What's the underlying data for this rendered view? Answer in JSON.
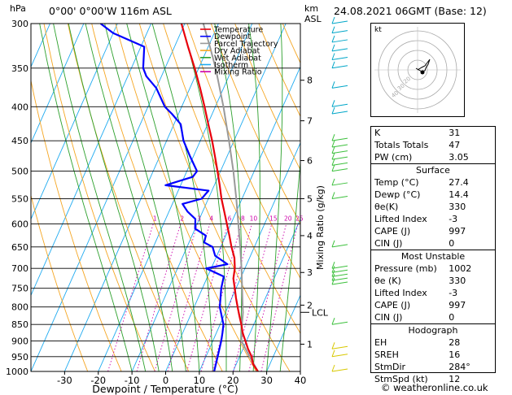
{
  "header": {
    "hpa_label": "hPa",
    "location": "0°00' 0°00'W  116m  ASL",
    "km_label": "km",
    "asl_label": "ASL",
    "date": "24.08.2021  06GMT  (Base: 12)"
  },
  "legend": [
    {
      "name": "Temperature",
      "color": "#e8000b"
    },
    {
      "name": "Dewpoint",
      "color": "#0000ff"
    },
    {
      "name": "Parcel Trajectory",
      "color": "#9a9a9a"
    },
    {
      "name": "Dry Adiabat",
      "color": "#f5a623"
    },
    {
      "name": "Wet Adiabat",
      "color": "#2ca02c"
    },
    {
      "name": "Isotherm",
      "color": "#1eaaf0"
    },
    {
      "name": "Mixing Ratio",
      "color": "#cc00aa"
    }
  ],
  "chart_data": {
    "type": "line",
    "title": "",
    "xlabel": "Dewpoint / Temperature (°C)",
    "ylabel": "hPa",
    "y2label": "Mixing Ratio (g/kg)",
    "xlim": [
      -40,
      40
    ],
    "ylim": [
      1000,
      300
    ],
    "y_scale": "log",
    "pressure_ticks": [
      300,
      350,
      400,
      450,
      500,
      550,
      600,
      650,
      700,
      750,
      800,
      850,
      900,
      950,
      1000
    ],
    "temp_ticks": [
      -30,
      -20,
      -10,
      0,
      10,
      20,
      30,
      40
    ],
    "km_ticks": [
      {
        "label": "1",
        "p": 910
      },
      {
        "label": "2",
        "p": 795
      },
      {
        "label": "3",
        "p": 710
      },
      {
        "label": "4",
        "p": 625
      },
      {
        "label": "5",
        "p": 550
      },
      {
        "label": "6",
        "p": 482
      },
      {
        "label": "7",
        "p": 420
      },
      {
        "label": "8",
        "p": 365
      }
    ],
    "lcl": {
      "label": "LCL",
      "p": 815
    },
    "mixing_ratio_labels": [
      "1",
      "2",
      "3",
      "4",
      "6",
      "8",
      "10",
      "15",
      "20",
      "25"
    ],
    "mixing_ratio_values": [
      1,
      2,
      3,
      4,
      6,
      8,
      10,
      15,
      20,
      25
    ],
    "series": [
      {
        "name": "Temperature",
        "points": [
          {
            "p": 1000,
            "t": 27.4
          },
          {
            "p": 975,
            "t": 25.0
          },
          {
            "p": 950,
            "t": 23.6
          },
          {
            "p": 925,
            "t": 21.5
          },
          {
            "p": 900,
            "t": 19.7
          },
          {
            "p": 875,
            "t": 17.8
          },
          {
            "p": 850,
            "t": 16.3
          },
          {
            "p": 825,
            "t": 14.6
          },
          {
            "p": 800,
            "t": 12.9
          },
          {
            "p": 775,
            "t": 11.2
          },
          {
            "p": 750,
            "t": 9.6
          },
          {
            "p": 725,
            "t": 7.9
          },
          {
            "p": 700,
            "t": 7.0
          },
          {
            "p": 675,
            "t": 5.5
          },
          {
            "p": 650,
            "t": 3.2
          },
          {
            "p": 625,
            "t": 1.1
          },
          {
            "p": 600,
            "t": -1.2
          },
          {
            "p": 575,
            "t": -3.6
          },
          {
            "p": 550,
            "t": -6.1
          },
          {
            "p": 525,
            "t": -8.4
          },
          {
            "p": 500,
            "t": -10.9
          },
          {
            "p": 475,
            "t": -13.6
          },
          {
            "p": 450,
            "t": -16.5
          },
          {
            "p": 425,
            "t": -19.8
          },
          {
            "p": 400,
            "t": -23.2
          },
          {
            "p": 375,
            "t": -27.0
          },
          {
            "p": 350,
            "t": -31.2
          },
          {
            "p": 325,
            "t": -36.0
          },
          {
            "p": 300,
            "t": -41.0
          }
        ]
      },
      {
        "name": "Dewpoint",
        "points": [
          {
            "p": 1000,
            "t": 14.4
          },
          {
            "p": 950,
            "t": 13.5
          },
          {
            "p": 900,
            "t": 12.5
          },
          {
            "p": 875,
            "t": 11.8
          },
          {
            "p": 850,
            "t": 11.0
          },
          {
            "p": 800,
            "t": 7.6
          },
          {
            "p": 750,
            "t": 5.6
          },
          {
            "p": 720,
            "t": 4.8
          },
          {
            "p": 700,
            "t": -1.5
          },
          {
            "p": 690,
            "t": 4.3
          },
          {
            "p": 670,
            "t": -0.5
          },
          {
            "p": 650,
            "t": -2.4
          },
          {
            "p": 640,
            "t": -5.5
          },
          {
            "p": 625,
            "t": -5.9
          },
          {
            "p": 610,
            "t": -10.0
          },
          {
            "p": 590,
            "t": -11.2
          },
          {
            "p": 575,
            "t": -14.5
          },
          {
            "p": 560,
            "t": -17.0
          },
          {
            "p": 550,
            "t": -12.0
          },
          {
            "p": 535,
            "t": -11.0
          },
          {
            "p": 525,
            "t": -24.5
          },
          {
            "p": 510,
            "t": -17.5
          },
          {
            "p": 500,
            "t": -17.0
          },
          {
            "p": 475,
            "t": -21.0
          },
          {
            "p": 450,
            "t": -25.0
          },
          {
            "p": 425,
            "t": -28.0
          },
          {
            "p": 410,
            "t": -32.0
          },
          {
            "p": 400,
            "t": -35.0
          },
          {
            "p": 375,
            "t": -40.0
          },
          {
            "p": 360,
            "t": -44.5
          },
          {
            "p": 350,
            "t": -46.5
          },
          {
            "p": 325,
            "t": -49.0
          },
          {
            "p": 310,
            "t": -60.0
          },
          {
            "p": 300,
            "t": -65.0
          }
        ]
      },
      {
        "name": "Parcel Trajectory",
        "points": [
          {
            "p": 1000,
            "t": 27.4
          },
          {
            "p": 950,
            "t": 23.0
          },
          {
            "p": 900,
            "t": 18.5
          },
          {
            "p": 850,
            "t": 16.5
          },
          {
            "p": 815,
            "t": 15.2
          },
          {
            "p": 800,
            "t": 14.4
          },
          {
            "p": 750,
            "t": 11.8
          },
          {
            "p": 700,
            "t": 9.0
          },
          {
            "p": 650,
            "t": 5.8
          },
          {
            "p": 600,
            "t": 2.2
          },
          {
            "p": 550,
            "t": -1.7
          },
          {
            "p": 500,
            "t": -6.2
          },
          {
            "p": 450,
            "t": -11.5
          },
          {
            "p": 400,
            "t": -17.6
          },
          {
            "p": 350,
            "t": -25.0
          },
          {
            "p": 325,
            "t": -29.5
          },
          {
            "p": 300,
            "t": -34.5
          }
        ]
      }
    ]
  },
  "indices": [
    {
      "label": "K",
      "value": "31"
    },
    {
      "label": "Totals Totals",
      "value": "47"
    },
    {
      "label": "PW (cm)",
      "value": "3.05"
    }
  ],
  "surface": {
    "title": "Surface",
    "rows": [
      {
        "label": "Temp (°C)",
        "value": "27.4"
      },
      {
        "label": "Dewp (°C)",
        "value": "14.4"
      },
      {
        "label": "θe(K)",
        "value": "330"
      },
      {
        "label": "Lifted Index",
        "value": "-3"
      },
      {
        "label": "CAPE (J)",
        "value": "997"
      },
      {
        "label": "CIN (J)",
        "value": "0"
      }
    ]
  },
  "most_unstable": {
    "title": "Most Unstable",
    "rows": [
      {
        "label": "Pressure (mb)",
        "value": "1002"
      },
      {
        "label": "θe (K)",
        "value": "330"
      },
      {
        "label": "Lifted Index",
        "value": "-3"
      },
      {
        "label": "CAPE (J)",
        "value": "997"
      },
      {
        "label": "CIN (J)",
        "value": "0"
      }
    ]
  },
  "hodograph": {
    "title": "Hodograph",
    "panel_label": "kt",
    "ring_labels": [
      "10",
      "20",
      "30",
      "40"
    ],
    "rows": [
      {
        "label": "EH",
        "value": "28"
      },
      {
        "label": "SREH",
        "value": "16"
      },
      {
        "label": "StmDir",
        "value": "284°"
      },
      {
        "label": "StmSpd (kt)",
        "value": "12"
      }
    ]
  },
  "copyright": "© weatheronline.co.uk"
}
